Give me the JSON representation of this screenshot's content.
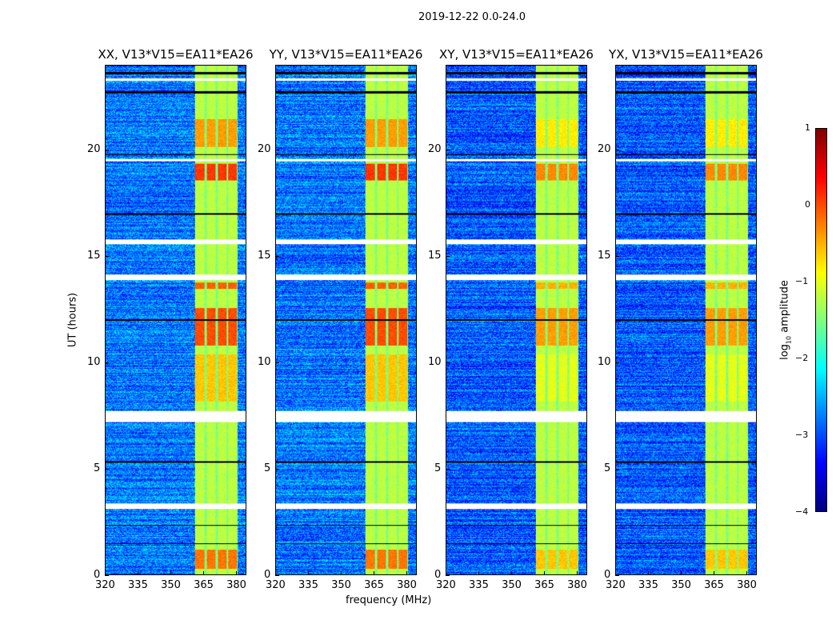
{
  "suptitle": "2019-12-22 0.0-24.0",
  "chart_data": {
    "type": "heatmap",
    "title": "2019-12-22 0.0-24.0",
    "xlabel": "frequency (MHz)",
    "ylabel": "UT (hours)",
    "xlim": [
      320,
      384.7
    ],
    "ylim": [
      0,
      24
    ],
    "xticks": [
      320,
      335,
      350,
      365,
      380
    ],
    "yticks": [
      0,
      5,
      10,
      15,
      20
    ],
    "panels": [
      {
        "title": "XX, V13*V15=EA11*EA26"
      },
      {
        "title": "YY, V13*V15=EA11*EA26"
      },
      {
        "title": "XY, V13*V15=EA11*EA26"
      },
      {
        "title": "YX, V13*V15=EA11*EA26"
      }
    ],
    "background_log10_amplitude": -2.8,
    "rfi_bands_mhz": [
      [
        361,
        365.6
      ],
      [
        366.5,
        370.5
      ],
      [
        371.6,
        375.6
      ],
      [
        376.3,
        380.4
      ]
    ],
    "rfi_base_log10_amplitude": -1.2,
    "strong_rfi_hours": [
      [
        0.3,
        1.2,
        -0.2
      ],
      [
        8.2,
        10.4,
        -0.6
      ],
      [
        10.8,
        12.6,
        0.0
      ],
      [
        13.5,
        13.8,
        -0.1
      ],
      [
        18.6,
        19.4,
        0.1
      ],
      [
        20.2,
        21.5,
        -0.4
      ]
    ],
    "flagged_hours": [
      [
        3.1,
        3.37
      ],
      [
        7.2,
        7.73
      ],
      [
        13.9,
        14.15
      ],
      [
        15.6,
        15.8
      ],
      [
        19.5,
        19.6
      ],
      [
        23.3,
        23.4
      ]
    ],
    "dark_rows_hours": [
      [
        1.45,
        1.5
      ],
      [
        2.3,
        2.35
      ],
      [
        5.3,
        5.35
      ],
      [
        12.0,
        12.05
      ],
      [
        17.0,
        17.05
      ],
      [
        19.8,
        19.85
      ],
      [
        22.7,
        22.8
      ],
      [
        23.6,
        23.7
      ]
    ],
    "colorbar": {
      "label": "log10 amplitude",
      "label_main": "log",
      "label_sub": "10",
      "label_rest": " amplitude",
      "range": [
        -4,
        1
      ],
      "ticks": [
        "1",
        "0",
        "−1",
        "−2",
        "−3",
        "−4"
      ],
      "colormap": "jet"
    }
  }
}
